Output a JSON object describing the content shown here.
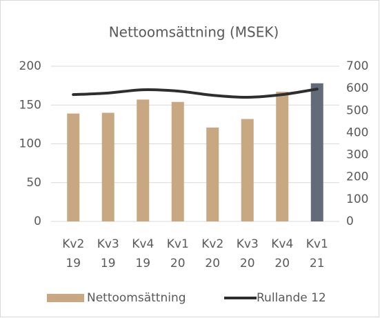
{
  "chart_data": {
    "type": "bar",
    "title": "Nettoomsättning (MSEK)",
    "categories": [
      [
        "Kv2",
        "19"
      ],
      [
        "Kv3",
        "19"
      ],
      [
        "Kv4",
        "19"
      ],
      [
        "Kv1",
        "20"
      ],
      [
        "Kv2",
        "20"
      ],
      [
        "Kv3",
        "20"
      ],
      [
        "Kv4",
        "20"
      ],
      [
        "Kv1",
        "21"
      ]
    ],
    "series": [
      {
        "name": "Nettoomsättning",
        "type": "bar",
        "color": "#c8a882",
        "colors": [
          "#c8a882",
          "#c8a882",
          "#c8a882",
          "#c8a882",
          "#c8a882",
          "#c8a882",
          "#c8a882",
          "#636b78"
        ],
        "values": [
          139,
          140,
          157,
          154,
          121,
          132,
          167,
          178
        ]
      },
      {
        "name": "Rullande 12",
        "type": "line",
        "color": "#2e2e2e",
        "axis": "y2",
        "values": [
          572,
          579,
          594,
          588,
          569,
          560,
          572,
          597
        ]
      }
    ],
    "ylim": [
      0,
      200
    ],
    "yticks": [
      0,
      50,
      100,
      150,
      200
    ],
    "y2lim": [
      0,
      700
    ],
    "y2ticks": [
      0,
      100,
      200,
      300,
      400,
      500,
      600,
      700
    ],
    "grid": true,
    "legend": "bottom"
  }
}
